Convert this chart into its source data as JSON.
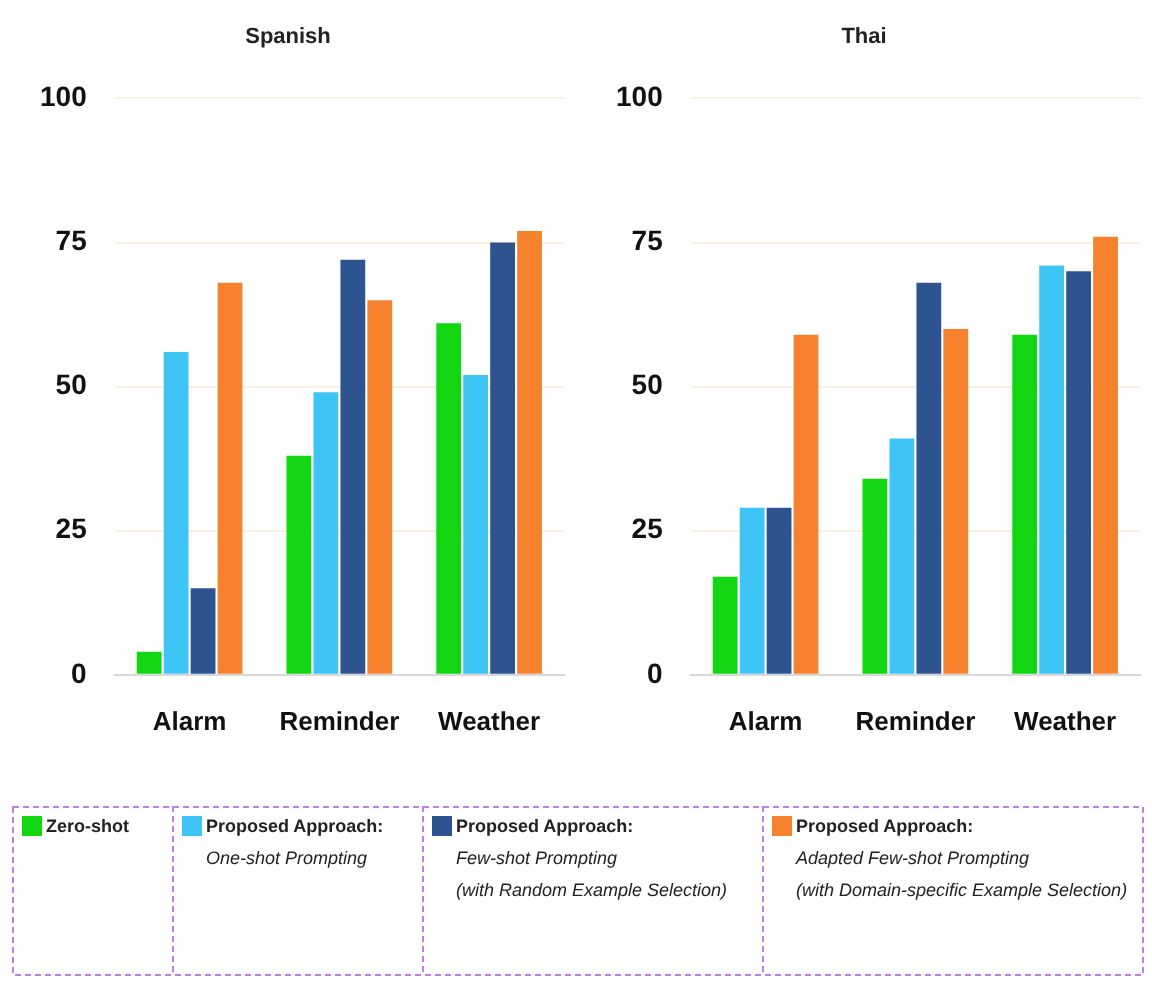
{
  "chart_data": [
    {
      "type": "bar",
      "title": "Spanish",
      "categories": [
        "Alarm",
        "Reminder",
        "Weather"
      ],
      "ylim": [
        0,
        100
      ],
      "yticks": [
        0,
        25,
        50,
        75,
        100
      ],
      "grid": "y",
      "legend": "bottom",
      "series": [
        {
          "name": "Zero-shot",
          "color": "#11d611",
          "values": [
            4,
            38,
            61
          ]
        },
        {
          "name": "Proposed Approach:\nOne-shot Prompting",
          "color": "#3fc5f5",
          "values": [
            56,
            49,
            52
          ]
        },
        {
          "name": "Proposed Approach:\nFew-shot Prompting\n(with Random Example Selection)",
          "color": "#2e5391",
          "values": [
            15,
            72,
            75
          ]
        },
        {
          "name": "Proposed Approach:\nAdapted Few-shot Prompting\n(with Domain-specific Example Selection)",
          "color": "#f7822e",
          "values": [
            68,
            65,
            77
          ]
        }
      ]
    },
    {
      "type": "bar",
      "title": "Thai",
      "categories": [
        "Alarm",
        "Reminder",
        "Weather"
      ],
      "ylim": [
        0,
        100
      ],
      "yticks": [
        0,
        25,
        50,
        75,
        100
      ],
      "grid": "y",
      "series": [
        {
          "color": "#11d611",
          "values": [
            17,
            34,
            59
          ]
        },
        {
          "color": "#3fc5f5",
          "values": [
            29,
            41,
            71
          ]
        },
        {
          "color": "#2e5391",
          "values": [
            29,
            68,
            70
          ]
        },
        {
          "color": "#f7822e",
          "values": [
            59,
            60,
            76
          ]
        }
      ]
    }
  ]
}
